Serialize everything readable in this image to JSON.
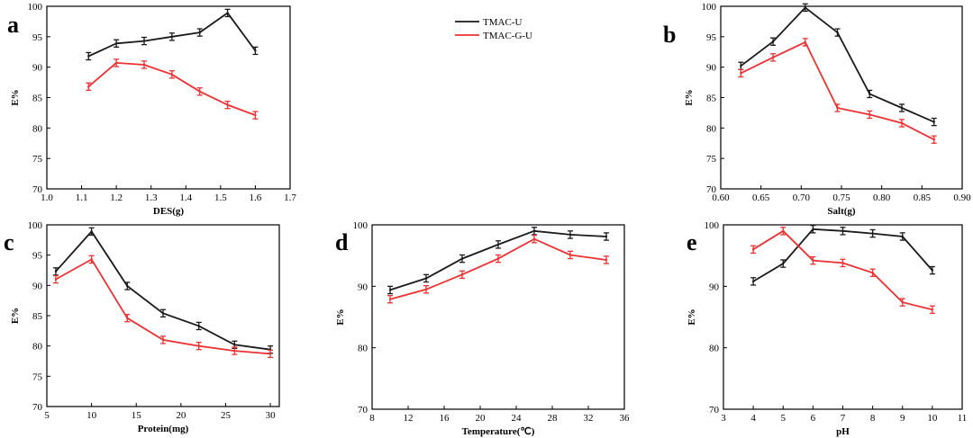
{
  "legend": {
    "entries": [
      {
        "name": "TMAC-U",
        "color": "#1a1a1a"
      },
      {
        "name": "TMAC-G-U",
        "color": "#ee3030"
      }
    ]
  },
  "chart_data": [
    {
      "letter": "a",
      "type": "line",
      "xlabel": "DES(g)",
      "ylabel": "E%",
      "xlim": [
        1.0,
        1.7
      ],
      "ylim": [
        70,
        100
      ],
      "xticks": [
        "1.0",
        "1.1",
        "1.2",
        "1.3",
        "1.4",
        "1.5",
        "1.6",
        "1.7"
      ],
      "yticks": [
        "70",
        "75",
        "80",
        "85",
        "90",
        "95",
        "100"
      ],
      "series": [
        {
          "name": "TMAC-U",
          "color": "#1a1a1a",
          "x": [
            1.12,
            1.2,
            1.28,
            1.36,
            1.44,
            1.52,
            1.6
          ],
          "y": [
            91.8,
            93.9,
            94.3,
            95.0,
            95.7,
            98.9,
            92.7
          ],
          "err": 0.6
        },
        {
          "name": "TMAC-G-U",
          "color": "#ee3030",
          "x": [
            1.12,
            1.2,
            1.28,
            1.36,
            1.44,
            1.52,
            1.6
          ],
          "y": [
            86.8,
            90.7,
            90.4,
            88.8,
            86.0,
            83.8,
            82.1
          ],
          "err": 0.6
        }
      ]
    },
    {
      "letter": "b",
      "type": "line",
      "xlabel": "Salt(g)",
      "ylabel": "E%",
      "xlim": [
        0.6,
        0.9
      ],
      "ylim": [
        70,
        100
      ],
      "xticks": [
        "0.60",
        "0.65",
        "0.70",
        "0.75",
        "0.80",
        "0.85",
        "0.90"
      ],
      "yticks": [
        "70",
        "75",
        "80",
        "85",
        "90",
        "95",
        "100"
      ],
      "series": [
        {
          "name": "TMAC-U",
          "color": "#1a1a1a",
          "x": [
            0.625,
            0.665,
            0.705,
            0.745,
            0.785,
            0.825,
            0.865
          ],
          "y": [
            90.2,
            94.2,
            99.8,
            95.7,
            85.6,
            83.3,
            81.0
          ],
          "err": 0.6
        },
        {
          "name": "TMAC-G-U",
          "color": "#ee3030",
          "x": [
            0.625,
            0.665,
            0.705,
            0.745,
            0.785,
            0.825,
            0.865
          ],
          "y": [
            89.0,
            91.6,
            94.1,
            83.3,
            82.2,
            80.8,
            78.1
          ],
          "err": 0.6
        }
      ]
    },
    {
      "letter": "c",
      "type": "line",
      "xlabel": "Protein(mg)",
      "ylabel": "E%",
      "xlim": [
        5,
        31
      ],
      "ylim": [
        70,
        100
      ],
      "xticks": [
        "5",
        "10",
        "15",
        "20",
        "25",
        "30"
      ],
      "xtick_values": [
        5,
        10,
        15,
        20,
        25,
        30
      ],
      "yticks": [
        "70",
        "75",
        "80",
        "85",
        "90",
        "95",
        "100"
      ],
      "series": [
        {
          "name": "TMAC-U",
          "color": "#1a1a1a",
          "x": [
            6,
            10,
            14,
            18,
            22,
            26,
            30
          ],
          "y": [
            92.3,
            98.9,
            89.9,
            85.4,
            83.3,
            80.2,
            79.4
          ],
          "err": 0.6
        },
        {
          "name": "TMAC-G-U",
          "color": "#ee3030",
          "x": [
            6,
            10,
            14,
            18,
            22,
            26,
            30
          ],
          "y": [
            91.0,
            94.3,
            84.6,
            81.0,
            80.0,
            79.2,
            78.7
          ],
          "err": 0.6
        }
      ]
    },
    {
      "letter": "d",
      "type": "line",
      "xlabel": "Temperature(℃)",
      "ylabel": "E%",
      "xlim": [
        8,
        36
      ],
      "ylim": [
        70,
        100
      ],
      "xticks": [
        "8",
        "12",
        "16",
        "20",
        "24",
        "28",
        "32",
        "36"
      ],
      "yticks": [
        "70",
        "80",
        "90",
        "100"
      ],
      "series": [
        {
          "name": "TMAC-U",
          "color": "#1a1a1a",
          "x": [
            10,
            14,
            18,
            22,
            26,
            30,
            34
          ],
          "y": [
            89.4,
            91.3,
            94.5,
            96.8,
            99.0,
            98.4,
            98.1
          ],
          "err": 0.6
        },
        {
          "name": "TMAC-G-U",
          "color": "#ee3030",
          "x": [
            10,
            14,
            18,
            22,
            26,
            30,
            34
          ],
          "y": [
            87.9,
            89.5,
            91.9,
            94.5,
            97.7,
            95.1,
            94.3
          ],
          "err": 0.6
        }
      ]
    },
    {
      "letter": "e",
      "type": "line",
      "xlabel": "pH",
      "ylabel": "E%",
      "xlim": [
        3,
        11
      ],
      "ylim": [
        70,
        100
      ],
      "xticks": [
        "3",
        "4",
        "5",
        "6",
        "7",
        "8",
        "9",
        "10",
        "11"
      ],
      "yticks": [
        "70",
        "80",
        "90",
        "100"
      ],
      "series": [
        {
          "name": "TMAC-U",
          "color": "#1a1a1a",
          "x": [
            4,
            5,
            6,
            7,
            8,
            9,
            10
          ],
          "y": [
            90.8,
            93.7,
            99.3,
            99.0,
            98.6,
            98.1,
            92.6
          ],
          "err": 0.6
        },
        {
          "name": "TMAC-G-U",
          "color": "#ee3030",
          "x": [
            4,
            5,
            6,
            7,
            8,
            9,
            10
          ],
          "y": [
            96.0,
            99.0,
            94.2,
            93.8,
            92.2,
            87.4,
            86.2
          ],
          "err": 0.6
        }
      ]
    }
  ]
}
